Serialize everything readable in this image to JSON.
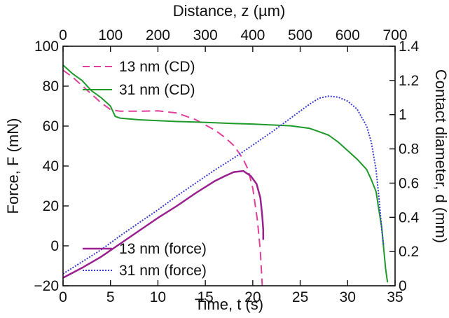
{
  "chart_data": {
    "type": "line",
    "title": "",
    "xlabel": "Time, t (s)",
    "x2label": "Distance, z (µm)",
    "ylabel": "Force, F (mN)",
    "y2label": "Contact diameter, d (mm)",
    "xlim": [
      0,
      35
    ],
    "x2lim": [
      0,
      700
    ],
    "ylim": [
      -20,
      100
    ],
    "y2lim": [
      0,
      1.4
    ],
    "xticks": [
      "0",
      "5",
      "10",
      "15",
      "20",
      "25",
      "30",
      "35"
    ],
    "x2ticks": [
      "0",
      "100",
      "200",
      "300",
      "400",
      "500",
      "600",
      "700"
    ],
    "yticks": [
      "−20",
      "0",
      "20",
      "40",
      "60",
      "80",
      "100"
    ],
    "y2ticks": [
      "0",
      "0.2",
      "0.4",
      "0.6",
      "0.8",
      "1",
      "1.2",
      "1.4"
    ],
    "grid": false,
    "series": [
      {
        "name": "13 nm (CD)",
        "axis": "right",
        "color": "#e0409a",
        "dash": "dashed",
        "x": [
          0,
          1,
          2,
          3,
          4,
          5,
          6,
          8,
          10,
          12,
          14,
          15,
          16,
          17,
          18,
          19,
          19.5,
          20,
          20.5,
          20.8,
          21
        ],
        "y": [
          1.26,
          1.22,
          1.17,
          1.12,
          1.07,
          1.03,
          1.02,
          1.02,
          1.022,
          1.01,
          0.97,
          0.94,
          0.91,
          0.87,
          0.82,
          0.74,
          0.68,
          0.57,
          0.38,
          0.2,
          0
        ]
      },
      {
        "name": "31 nm (CD)",
        "axis": "right",
        "color": "#1e9a2a",
        "dash": "solid",
        "x": [
          0,
          1,
          2,
          3,
          4,
          5,
          5.5,
          6,
          8,
          10,
          12,
          14,
          16,
          18,
          20,
          22,
          24,
          26,
          27,
          28,
          29,
          30,
          31,
          32,
          32.5,
          33,
          33.3,
          33.6,
          33.8,
          34,
          34.2
        ],
        "y": [
          1.29,
          1.24,
          1.2,
          1.14,
          1.1,
          1.05,
          0.99,
          0.98,
          0.97,
          0.965,
          0.96,
          0.957,
          0.953,
          0.948,
          0.945,
          0.94,
          0.935,
          0.92,
          0.9,
          0.88,
          0.84,
          0.79,
          0.74,
          0.68,
          0.62,
          0.55,
          0.44,
          0.34,
          0.22,
          0.1,
          0.02
        ]
      },
      {
        "name": "13 nm (force)",
        "axis": "left",
        "color": "#9a208f",
        "dash": "solid",
        "x": [
          0,
          2,
          4,
          6,
          8,
          10,
          12,
          14,
          16,
          17,
          18,
          19,
          19.8,
          20.4,
          20.8,
          21,
          21.1,
          21.1
        ],
        "y": [
          -16,
          -11,
          -5.5,
          1,
          7.5,
          14,
          20,
          26.5,
          32.5,
          34.8,
          37,
          37.5,
          35,
          31,
          24,
          15,
          8,
          3
        ]
      },
      {
        "name": "31 nm (force)",
        "axis": "left",
        "color": "#3a3ad0",
        "dash": "dotted",
        "x": [
          0,
          2,
          4,
          6,
          8,
          10,
          12,
          14,
          16,
          18,
          20,
          22,
          24,
          26,
          27,
          28,
          29,
          30,
          31,
          32,
          32.5,
          33,
          33.3,
          33.6,
          33.8
        ],
        "y": [
          -14,
          -8,
          -2,
          5,
          11.5,
          18,
          25,
          31.5,
          38,
          44,
          50.5,
          57,
          64,
          71,
          74,
          75,
          74.5,
          72.5,
          68.5,
          60,
          52,
          38,
          24,
          8,
          0
        ]
      }
    ],
    "legend": [
      {
        "label": "13 nm (CD)",
        "position": "top-left"
      },
      {
        "label": "31 nm (CD)",
        "position": "top-left"
      },
      {
        "label": "13 nm (force)",
        "position": "bottom-left"
      },
      {
        "label": "31 nm (force)",
        "position": "bottom-left"
      }
    ]
  }
}
